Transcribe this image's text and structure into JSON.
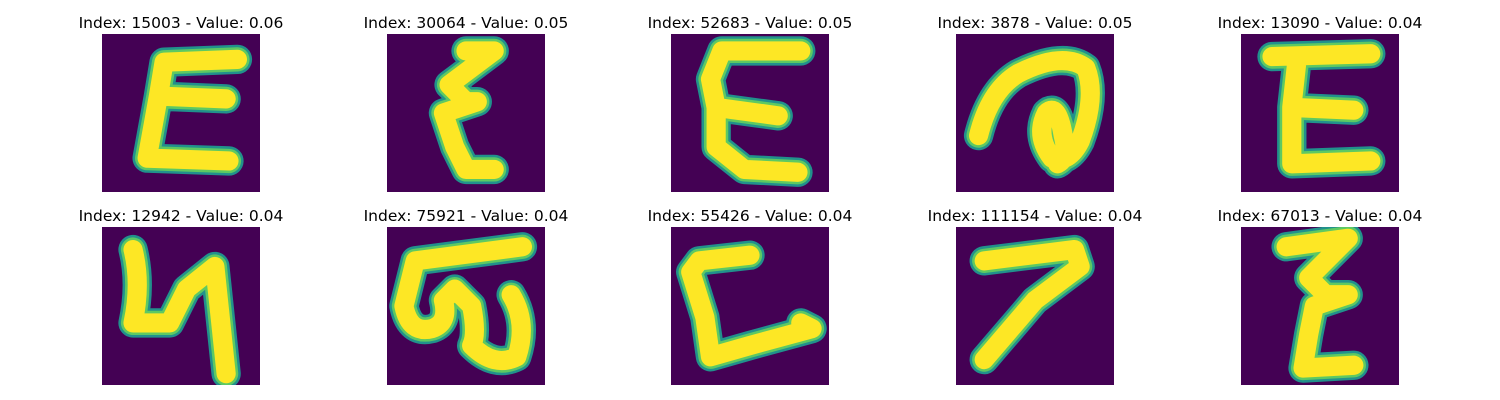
{
  "colors": {
    "background": "#440154",
    "stroke_edge": "#21918c",
    "stroke_mid": "#5ec962",
    "stroke_core": "#fde725"
  },
  "panels": [
    {
      "title": "Index: 15003 - Value: 0.06",
      "glyph": "epsilon-style letter E"
    },
    {
      "title": "Index: 30064 - Value: 0.05",
      "glyph": "zigzag letter"
    },
    {
      "title": "Index: 52683 - Value: 0.05",
      "glyph": "letter E"
    },
    {
      "title": "Index: 3878 - Value: 0.05",
      "glyph": "looped cursive letter"
    },
    {
      "title": "Index: 13090 - Value: 0.04",
      "glyph": "letter E"
    },
    {
      "title": "Index: 12942 - Value: 0.04",
      "glyph": "letter resembling N"
    },
    {
      "title": "Index: 75921 - Value: 0.04",
      "glyph": "letter resembling omega"
    },
    {
      "title": "Index: 55426 - Value: 0.04",
      "glyph": "letter L"
    },
    {
      "title": "Index: 111154 - Value: 0.04",
      "glyph": "digit 7"
    },
    {
      "title": "Index: 67013 - Value: 0.04",
      "glyph": "zigzag letter"
    }
  ]
}
